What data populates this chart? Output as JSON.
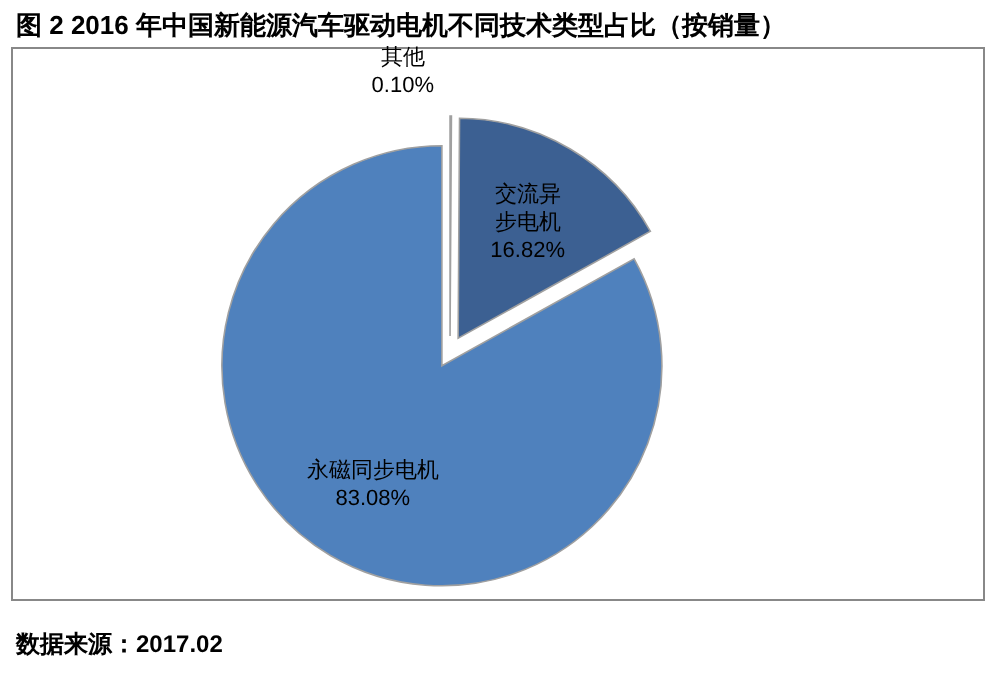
{
  "chart_data": {
    "type": "pie",
    "title": "图 2 2016 年中国新能源汽车驱动电机不同技术类型占比（按销量）",
    "categories": [
      "其他",
      "交流异步电机",
      "永磁同步电机"
    ],
    "values": [
      0.1,
      16.82,
      83.08
    ],
    "value_labels": [
      "0.10%",
      "16.82%",
      "83.08%"
    ],
    "colors": [
      "#ffffff",
      "#3c6092",
      "#4f81bd"
    ],
    "annotations": [
      "数据来源：2017.02"
    ]
  }
}
